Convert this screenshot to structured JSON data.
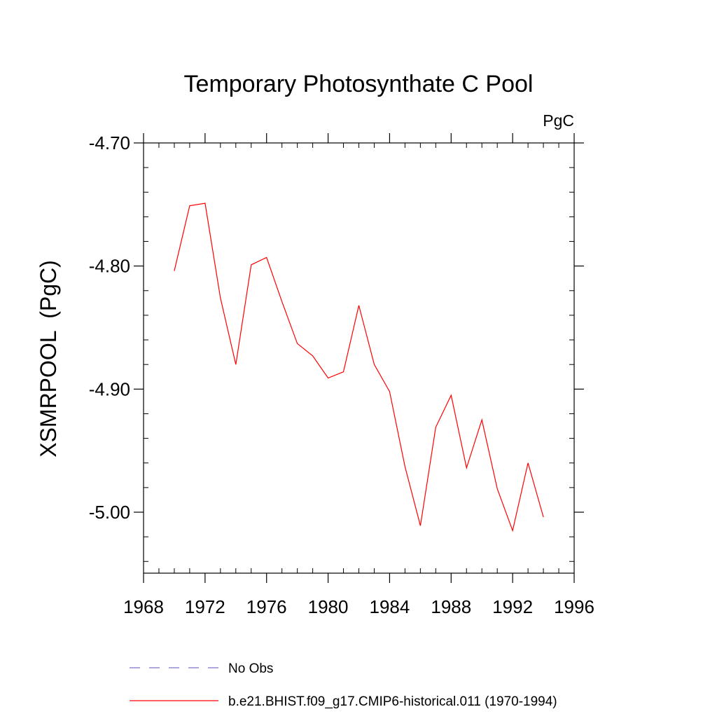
{
  "chart_data": {
    "type": "line",
    "title": "Temporary Photosynthate C Pool",
    "units_label": "PgC",
    "xlabel": "",
    "ylabel": "XSMRPOOL  (PgC)",
    "xlim": [
      1968,
      1996
    ],
    "ylim": [
      -5.05,
      -4.69
    ],
    "x_ticks": [
      1968,
      1972,
      1976,
      1980,
      1984,
      1988,
      1992,
      1996
    ],
    "y_ticks": [
      -4.7,
      -4.8,
      -4.9,
      -5.0
    ],
    "y_tick_labels": [
      "-4.70",
      "-4.80",
      "-4.90",
      "-5.00"
    ],
    "grid": false,
    "legend_placement": "bottom",
    "series": [
      {
        "name": "No Obs",
        "color": "#7b74c9",
        "dash": "dashed",
        "x": [],
        "y": []
      },
      {
        "name": "b.e21.BHIST.f09_g17.CMIP6-historical.011 (1970-1994)",
        "color": "#ff0000",
        "dash": "solid",
        "x": [
          1970,
          1971,
          1972,
          1973,
          1974,
          1975,
          1976,
          1977,
          1978,
          1979,
          1980,
          1981,
          1982,
          1983,
          1984,
          1985,
          1986,
          1987,
          1988,
          1989,
          1990,
          1991,
          1992,
          1993,
          1994
        ],
        "y": [
          -4.804,
          -4.751,
          -4.749,
          -4.826,
          -4.88,
          -4.799,
          -4.793,
          -4.829,
          -4.863,
          -4.873,
          -4.891,
          -4.886,
          -4.832,
          -4.88,
          -4.902,
          -4.963,
          -5.011,
          -4.931,
          -4.905,
          -4.964,
          -4.925,
          -4.981,
          -5.015,
          -4.96,
          -5.004
        ]
      }
    ]
  }
}
